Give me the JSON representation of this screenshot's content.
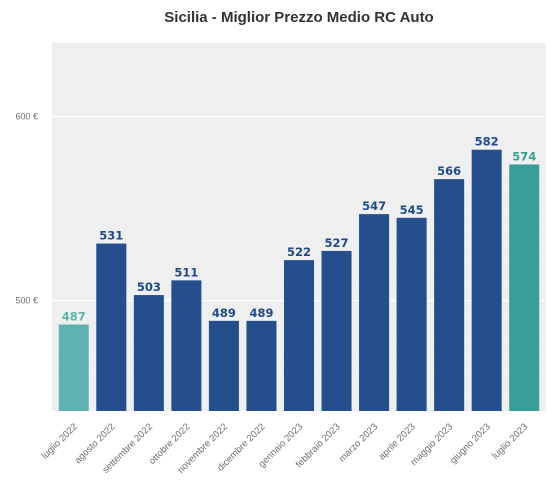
{
  "chart_data": {
    "type": "bar",
    "title": "Sicilia - Miglior Prezzo Medio RC Auto",
    "xlabel": "",
    "ylabel": "",
    "categories": [
      "luglio 2022",
      "agosto 2022",
      "settembre 2022",
      "ottobre 2022",
      "novembre 2022",
      "dicembre 2022",
      "gennaio 2023",
      "febbraio 2023",
      "marzo 2023",
      "aprile 2023",
      "maggio 2023",
      "giugno 2023",
      "luglio 2023"
    ],
    "values": [
      487,
      531,
      503,
      511,
      489,
      489,
      522,
      527,
      547,
      545,
      566,
      582,
      574
    ],
    "value_labels": [
      "487",
      "531",
      "503",
      "511",
      "489",
      "489",
      "522",
      "527",
      "547",
      "545",
      "566",
      "582",
      "574"
    ],
    "ylim": [
      440,
      640
    ],
    "yticks": [
      500,
      600
    ],
    "ytick_labels": [
      "500 €",
      "600 €"
    ],
    "grid": true,
    "bar_colors": [
      "#5fb3ae",
      "#244e8c",
      "#244e8c",
      "#244e8c",
      "#244e8c",
      "#244e8c",
      "#244e8c",
      "#244e8c",
      "#244e8c",
      "#244e8c",
      "#244e8c",
      "#244e8c",
      "#3a9e98"
    ],
    "label_colors": [
      "#5fb3ae",
      "#1f4a8a",
      "#1f4a8a",
      "#1f4a8a",
      "#1f4a8a",
      "#1f4a8a",
      "#1f4a8a",
      "#1f4a8a",
      "#1f4a8a",
      "#1f4a8a",
      "#1f4a8a",
      "#1f4a8a",
      "#3a9e98"
    ],
    "background_color": "#efefef"
  }
}
